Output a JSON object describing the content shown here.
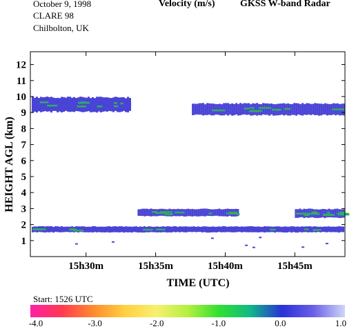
{
  "header": {
    "date": "October   9, 1998",
    "campaign": "CLARE 98",
    "location": "Chilbolton, UK",
    "title_left": "Velocity (m/s)",
    "title_right": "GKSS  W-band Radar",
    "start_label": "Start: 1526 UTC"
  },
  "colors": {
    "band_main": "#4a44d6",
    "band_highlight": "#2fae5e",
    "band_edge": "#8a9a9a",
    "gradient": [
      "#ff1fa8",
      "#ff3a4f",
      "#ff8a30",
      "#ffd040",
      "#f8f070",
      "#b4f040",
      "#30e030",
      "#10b888",
      "#2a30d8",
      "#6a60e8",
      "#d0d6f8"
    ]
  },
  "chart_data": {
    "type": "heatmap",
    "xlabel": "TIME (UTC)",
    "ylabel": "HEIGHT AGL (km)",
    "xticks": [
      {
        "time_min": 30,
        "label": "15h30m"
      },
      {
        "time_min": 35,
        "label": "15h35m"
      },
      {
        "time_min": 40,
        "label": "15h40m"
      },
      {
        "time_min": 45,
        "label": "15h45m"
      }
    ],
    "xlim_minutes_past_15h": [
      26,
      48.6
    ],
    "yticks": [
      1,
      2,
      3,
      4,
      5,
      6,
      7,
      8,
      9,
      10,
      11,
      12
    ],
    "ylim_km": [
      0,
      12.8
    ],
    "colorbar": {
      "label_ticks": [
        "-4.0",
        "-3.0",
        "-2.0",
        "-1.0",
        "0.0",
        "1.0"
      ],
      "range": [
        -4.0,
        1.0
      ]
    },
    "features": [
      {
        "name": "cirrus-left",
        "t_start": 26.1,
        "t_end": 33.2,
        "z_bottom": 9.0,
        "z_top": 10.0,
        "velocity": -0.3
      },
      {
        "name": "cirrus-right",
        "t_start": 37.6,
        "t_end": 48.5,
        "z_bottom": 8.8,
        "z_top": 9.6,
        "velocity": -0.3
      },
      {
        "name": "low-cloud-layer",
        "t_start": 26.1,
        "t_end": 48.5,
        "z_bottom": 1.5,
        "z_top": 1.9,
        "velocity": -0.2
      },
      {
        "name": "mid-layer-center",
        "t_start": 33.7,
        "t_end": 40.9,
        "z_bottom": 2.5,
        "z_top": 3.0,
        "velocity": -0.1
      },
      {
        "name": "mid-layer-right",
        "t_start": 45.0,
        "t_end": 48.5,
        "z_bottom": 2.4,
        "z_top": 3.0,
        "velocity": -0.2
      }
    ]
  }
}
